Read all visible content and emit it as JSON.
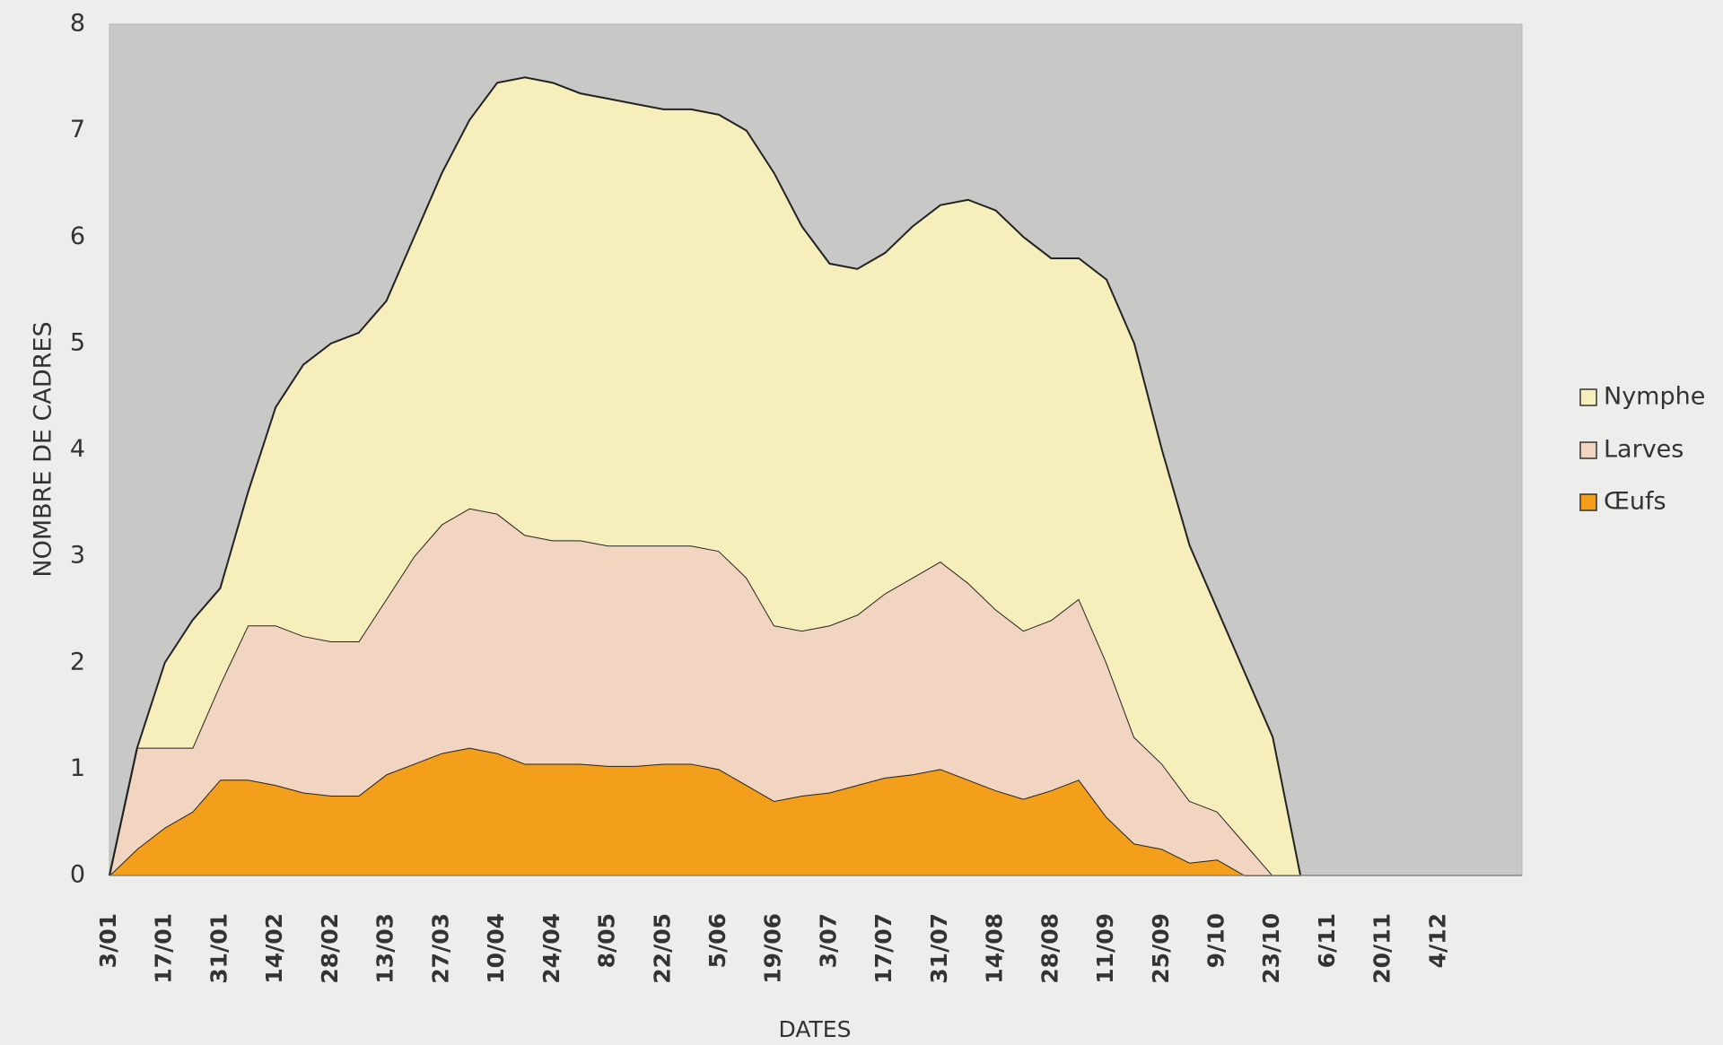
{
  "chart_data": {
    "type": "stacked_area",
    "ylabel": "NOMBRE DE CADRES",
    "xlabel": "DATES",
    "categories": [
      "3/01",
      null,
      "17/01",
      null,
      "31/01",
      null,
      "14/02",
      null,
      "28/02",
      null,
      "13/03",
      null,
      "27/03",
      null,
      "10/04",
      null,
      "24/04",
      null,
      "8/05",
      null,
      "22/05",
      null,
      "5/06",
      null,
      "19/06",
      null,
      "3/07",
      null,
      "17/07",
      null,
      "31/07",
      null,
      "14/08",
      null,
      "28/08",
      null,
      "11/09",
      null,
      "25/09",
      null,
      "9/10",
      null,
      "23/10",
      null,
      "6/11",
      null,
      "20/11",
      null,
      "4/12",
      null,
      null,
      null
    ],
    "series": [
      {
        "name": "Œufs",
        "color": "#f39f1c",
        "values": [
          0,
          0.25,
          0.45,
          0.6,
          0.9,
          0.9,
          0.85,
          0.78,
          0.75,
          0.75,
          0.95,
          1.05,
          1.15,
          1.2,
          1.15,
          1.05,
          1.05,
          1.05,
          1.03,
          1.03,
          1.05,
          1.05,
          1.0,
          0.85,
          0.7,
          0.75,
          0.78,
          0.85,
          0.92,
          0.95,
          1.0,
          0.9,
          0.8,
          0.72,
          0.8,
          0.9,
          0.55,
          0.3,
          0.25,
          0.12,
          0.15,
          0,
          0,
          0,
          null,
          null,
          null,
          null,
          null,
          null,
          null,
          null
        ]
      },
      {
        "name": "Larves",
        "color": "#f2d5c1",
        "values": [
          0,
          0.95,
          0.75,
          0.6,
          0.9,
          1.45,
          1.5,
          1.47,
          1.45,
          1.45,
          1.65,
          1.95,
          2.15,
          2.25,
          2.25,
          2.15,
          2.1,
          2.1,
          2.07,
          2.07,
          2.05,
          2.05,
          2.05,
          1.95,
          1.65,
          1.55,
          1.57,
          1.6,
          1.73,
          1.85,
          1.95,
          1.85,
          1.7,
          1.58,
          1.6,
          1.7,
          1.45,
          1.0,
          0.8,
          0.58,
          0.45,
          0.3,
          0,
          0,
          null,
          null,
          null,
          null,
          null,
          null,
          null,
          null
        ]
      },
      {
        "name": "Nymphe",
        "color": "#f6efbb",
        "values": [
          0,
          0,
          0.8,
          1.2,
          0.9,
          1.25,
          2.05,
          2.55,
          2.8,
          2.9,
          2.8,
          3.0,
          3.3,
          3.65,
          4.05,
          4.3,
          4.3,
          4.2,
          4.2,
          4.15,
          4.1,
          4.1,
          4.1,
          4.2,
          4.25,
          3.8,
          3.4,
          3.25,
          3.2,
          3.3,
          3.35,
          3.6,
          3.75,
          3.7,
          3.4,
          3.2,
          3.6,
          3.7,
          2.95,
          2.4,
          1.9,
          1.6,
          1.3,
          0,
          null,
          null,
          null,
          null,
          null,
          null,
          null,
          null
        ]
      }
    ],
    "ylim": [
      0,
      8
    ],
    "yticks": [
      0,
      1,
      2,
      3,
      4,
      5,
      6,
      7,
      8
    ],
    "grid": false,
    "legend": "right"
  }
}
